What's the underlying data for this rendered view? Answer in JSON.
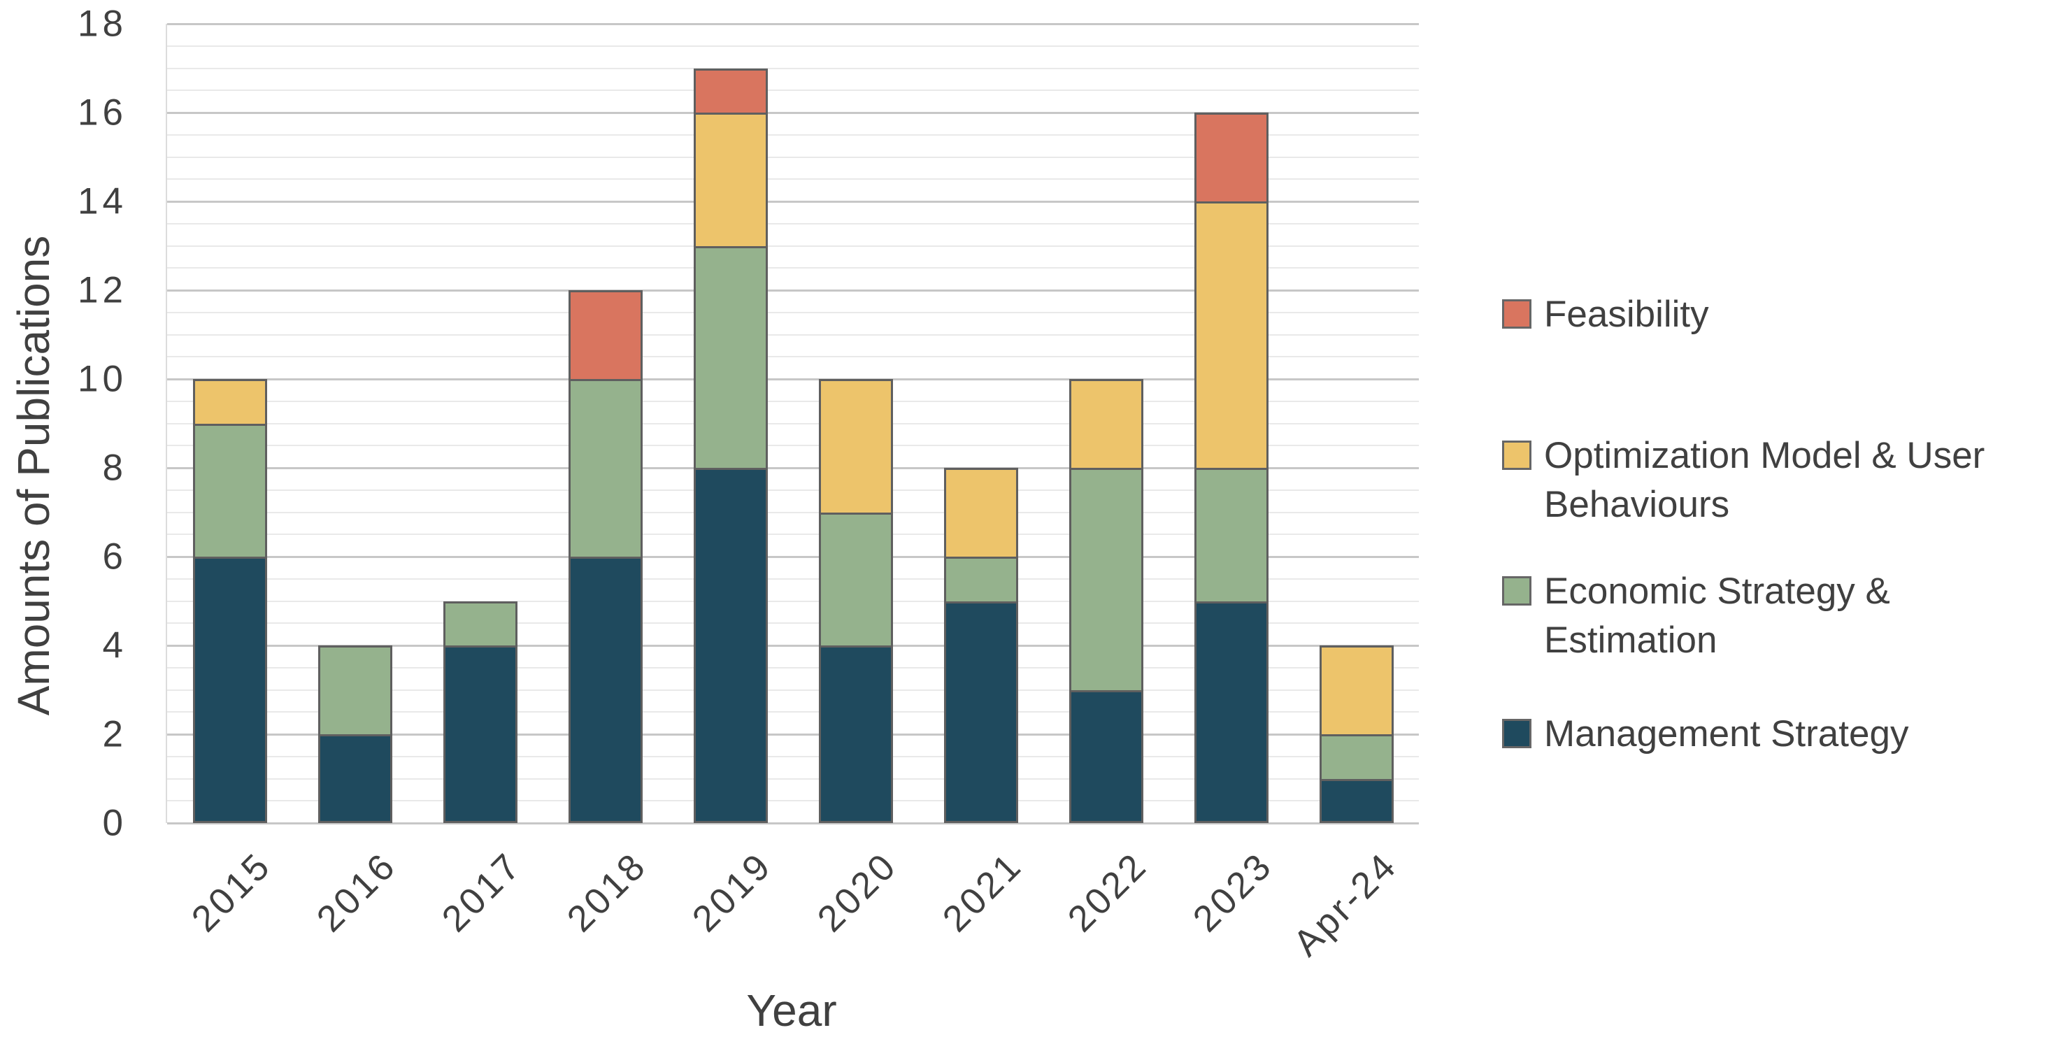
{
  "chart_data": {
    "type": "bar",
    "stacked": true,
    "orientation": "vertical",
    "title": "",
    "xlabel": "Year",
    "ylabel": "Amounts of Publications",
    "ylim": [
      0,
      18
    ],
    "ytick_step": 2,
    "minor_gridline_step": 0.5,
    "grid": true,
    "yticks": [
      0,
      2,
      4,
      6,
      8,
      10,
      12,
      14,
      16,
      18
    ],
    "categories": [
      "2015",
      "2016",
      "2017",
      "2018",
      "2019",
      "2020",
      "2021",
      "2022",
      "2023",
      "Apr-24"
    ],
    "series": [
      {
        "name": "Management Strategy",
        "color": "#1F4A5E",
        "values": [
          6,
          2,
          4,
          6,
          8,
          4,
          5,
          3,
          5,
          1
        ]
      },
      {
        "name": "Economic Strategy & Estimation",
        "color": "#95B28D",
        "values": [
          3,
          2,
          1,
          4,
          5,
          3,
          1,
          5,
          3,
          1
        ]
      },
      {
        "name": "Optimization Model & User Behaviours",
        "color": "#EDC46B",
        "values": [
          1,
          0,
          0,
          0,
          3,
          3,
          2,
          2,
          6,
          2
        ]
      },
      {
        "name": "Feasibility",
        "color": "#D9755F",
        "values": [
          0,
          0,
          0,
          2,
          1,
          0,
          0,
          0,
          2,
          0
        ]
      }
    ],
    "totals": [
      10,
      4,
      5,
      12,
      17,
      10,
      8,
      10,
      16,
      4
    ],
    "legend": {
      "position": "right",
      "items": [
        {
          "label": "Feasibility",
          "color": "#D9755F"
        },
        {
          "label": "Optimization Model & User Behaviours",
          "color": "#EDC46B"
        },
        {
          "label": "Economic Strategy & Estimation",
          "color": "#95B28D"
        },
        {
          "label": "Management Strategy",
          "color": "#1F4A5E"
        }
      ]
    }
  },
  "styles": {
    "background": "#FFFFFF",
    "text_color": "#404040",
    "segment_border": "#5F5F5F",
    "legend_marker_border": "#666666",
    "grid_major": "#C7C7C7",
    "grid_minor": "#E9E9E9"
  }
}
